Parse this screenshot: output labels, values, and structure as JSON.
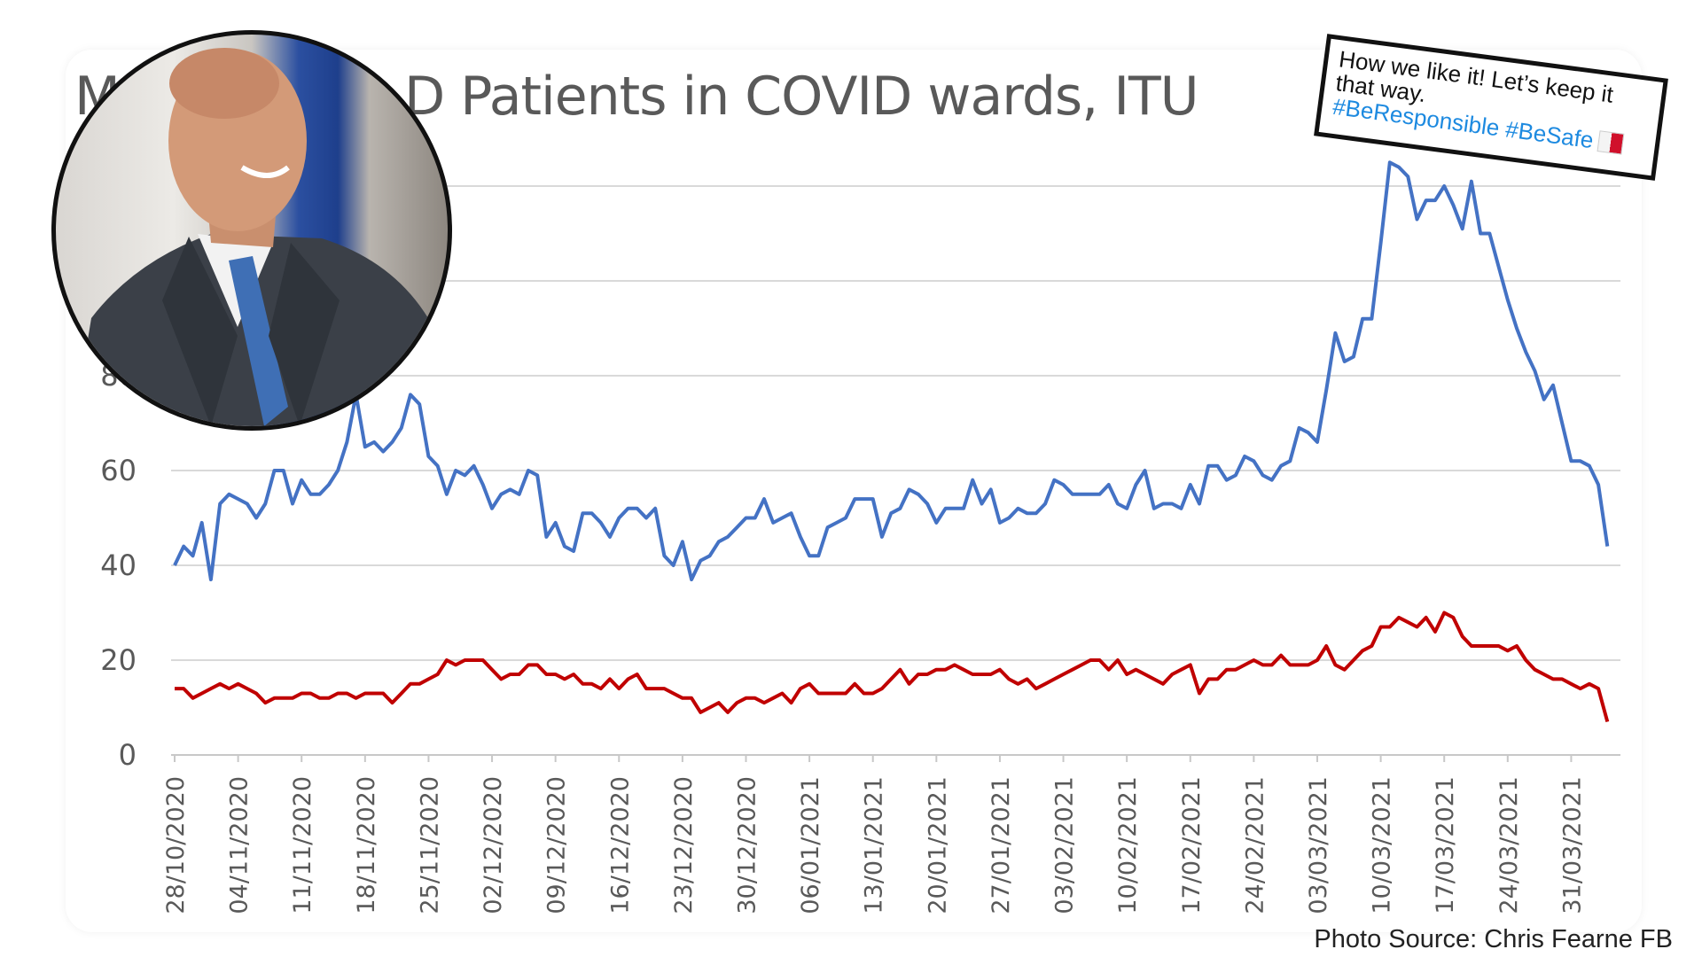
{
  "chart_data": {
    "type": "line",
    "title_visible_parts": [
      "M",
      "D Patients in COVID wards, ITU"
    ],
    "xlabel": "",
    "ylabel": "",
    "frequency": "daily",
    "x_tick_labels": [
      "28/10/2020",
      "04/11/2020",
      "11/11/2020",
      "18/11/2020",
      "25/11/2020",
      "02/12/2020",
      "09/12/2020",
      "16/12/2020",
      "23/12/2020",
      "30/12/2020",
      "06/01/2021",
      "13/01/2021",
      "20/01/2021",
      "27/01/2021",
      "03/02/2021",
      "10/02/2021",
      "17/02/2021",
      "24/02/2021",
      "03/03/2021",
      "10/03/2021",
      "17/03/2021",
      "24/03/2021",
      "31/03/2021"
    ],
    "y_tick_labels": [
      "0",
      "20",
      "40",
      "60",
      "80"
    ],
    "ylim": [
      0,
      140
    ],
    "y_gridlines": [
      20,
      40,
      60,
      80,
      100,
      120
    ],
    "grid": true,
    "legend": "none",
    "series": [
      {
        "color": "#4472c4",
        "values": [
          40,
          44,
          42,
          49,
          37,
          53,
          55,
          54,
          53,
          50,
          53,
          60,
          60,
          53,
          58,
          55,
          55,
          57,
          60,
          66,
          76,
          65,
          66,
          64,
          66,
          69,
          76,
          74,
          63,
          61,
          55,
          60,
          59,
          61,
          57,
          52,
          55,
          56,
          55,
          60,
          59,
          46,
          49,
          44,
          43,
          51,
          51,
          49,
          46,
          50,
          52,
          52,
          50,
          52,
          42,
          40,
          45,
          37,
          41,
          42,
          45,
          46,
          48,
          50,
          50,
          54,
          49,
          50,
          51,
          46,
          42,
          42,
          48,
          49,
          50,
          54,
          54,
          54,
          46,
          51,
          52,
          56,
          55,
          53,
          49,
          52,
          52,
          52,
          58,
          53,
          56,
          49,
          50,
          52,
          51,
          51,
          53,
          58,
          57,
          55,
          55,
          55,
          55,
          57,
          53,
          52,
          57,
          60,
          52,
          53,
          53,
          52,
          57,
          53,
          61,
          61,
          58,
          59,
          63,
          62,
          59,
          58,
          61,
          62,
          69,
          68,
          66,
          77,
          89,
          83,
          84,
          92,
          92,
          108,
          125,
          124,
          122,
          113,
          117,
          117,
          120,
          116,
          111,
          121,
          110,
          110,
          103,
          96,
          90,
          85,
          81,
          75,
          78,
          70,
          62,
          62,
          61,
          57,
          44
        ]
      },
      {
        "color": "#c00000",
        "values": [
          14,
          14,
          12,
          13,
          14,
          15,
          14,
          15,
          14,
          13,
          11,
          12,
          12,
          12,
          13,
          13,
          12,
          12,
          13,
          13,
          12,
          13,
          13,
          13,
          11,
          13,
          15,
          15,
          16,
          17,
          20,
          19,
          20,
          20,
          20,
          18,
          16,
          17,
          17,
          19,
          19,
          17,
          17,
          16,
          17,
          15,
          15,
          14,
          16,
          14,
          16,
          17,
          14,
          14,
          14,
          13,
          12,
          12,
          9,
          10,
          11,
          9,
          11,
          12,
          12,
          11,
          12,
          13,
          11,
          14,
          15,
          13,
          13,
          13,
          13,
          15,
          13,
          13,
          14,
          16,
          18,
          15,
          17,
          17,
          18,
          18,
          19,
          18,
          17,
          17,
          17,
          18,
          16,
          15,
          16,
          14,
          15,
          16,
          17,
          18,
          19,
          20,
          20,
          18,
          20,
          17,
          18,
          17,
          16,
          15,
          17,
          18,
          19,
          13,
          16,
          16,
          18,
          18,
          19,
          20,
          19,
          19,
          21,
          19,
          19,
          19,
          20,
          23,
          19,
          18,
          20,
          22,
          23,
          27,
          27,
          29,
          28,
          27,
          29,
          26,
          30,
          29,
          25,
          23,
          23,
          23,
          23,
          22,
          23,
          20,
          18,
          17,
          16,
          16,
          15,
          14,
          15,
          14,
          7
        ]
      }
    ]
  },
  "tweet": {
    "line1": "How we like it!  Let’s keep it",
    "line2": "that way.",
    "hashtags": "#BeResponsible #BeSafe",
    "flag_icon": "malta-flag"
  },
  "photo": {
    "subject_icon": "portrait-photo"
  },
  "footer": {
    "source": "Photo Source: Chris Fearne FB"
  },
  "colors": {
    "axis_text": "#595959",
    "grid": "#d9d9d9"
  }
}
